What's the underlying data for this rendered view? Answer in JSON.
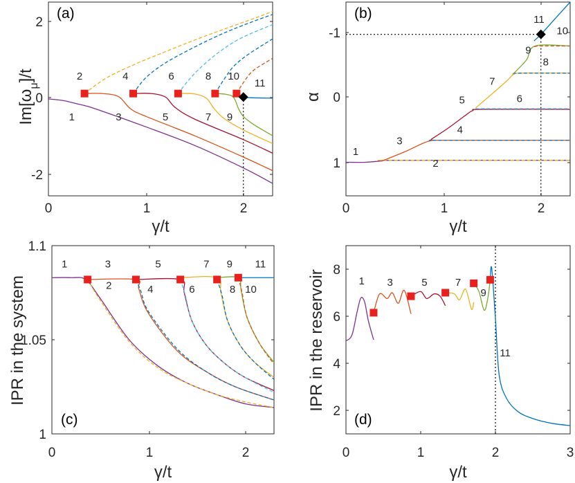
{
  "colors": {
    "c1": "#7E2F8E",
    "c2": "#EDB120",
    "c3": "#D95319",
    "c4": "#0072BD",
    "c5": "#A2142F",
    "c6": "#4DBEEE",
    "c7": "#EDB120",
    "c8": "#0072BD",
    "c9": "#77AC30",
    "c10": "#D95319",
    "c11": "#0072BD",
    "ep_marker": "#E8211F",
    "special_marker": "#000000"
  },
  "chart_data": [
    {
      "panel": "(a)",
      "type": "line",
      "xlabel": "γ/t",
      "ylabel": "Im[ω_μ]/t",
      "xlim": [
        0,
        2.3
      ],
      "ylim": [
        -2.5,
        2.5
      ],
      "xticks": [
        "0",
        "1",
        "2"
      ],
      "yticks": [
        "-2",
        "0",
        "2"
      ],
      "exceptional_points": [
        [
          0.37,
          0.14
        ],
        [
          0.87,
          0.14
        ],
        [
          1.33,
          0.14
        ],
        [
          1.71,
          0.14
        ],
        [
          1.93,
          0.14
        ]
      ],
      "special_point": [
        2.0,
        0.05
      ],
      "vline_x": 2.0,
      "curve_labels": [
        "1",
        "2",
        "3",
        "4",
        "5",
        "6",
        "7",
        "8",
        "9",
        "10",
        "11"
      ],
      "series": [
        {
          "name": "1",
          "style": "solid",
          "x": [
            0,
            0.15,
            0.3,
            0.37,
            0.5,
            1,
            1.5,
            2,
            2.3
          ],
          "y": [
            0,
            -0.04,
            -0.13,
            -0.17,
            -0.27,
            -0.72,
            -1.2,
            -1.78,
            -2.18
          ]
        },
        {
          "name": "2",
          "style": "dashed",
          "x": [
            0.37,
            0.6,
            0.9,
            1.2,
            1.5,
            1.8,
            2.1,
            2.3
          ],
          "y": [
            0.14,
            0.55,
            0.91,
            1.22,
            1.52,
            1.8,
            2.07,
            2.26
          ]
        },
        {
          "name": "3",
          "style": "solid",
          "x": [
            0.37,
            0.55,
            0.72,
            0.84,
            1.0,
            1.5,
            2.0,
            2.3
          ],
          "y": [
            0.14,
            0.14,
            0.06,
            -0.25,
            -0.45,
            -0.95,
            -1.5,
            -1.85
          ]
        },
        {
          "name": "4",
          "style": "dashed",
          "x": [
            0.87,
            1.0,
            1.2,
            1.5,
            1.8,
            2.1,
            2.3
          ],
          "y": [
            0.14,
            0.55,
            0.93,
            1.34,
            1.7,
            2.0,
            2.18
          ]
        },
        {
          "name": "5",
          "style": "solid",
          "x": [
            0.87,
            1.05,
            1.2,
            1.3,
            1.5,
            2.0,
            2.3
          ],
          "y": [
            0.14,
            0.14,
            0.05,
            -0.22,
            -0.52,
            -1.05,
            -1.4
          ]
        },
        {
          "name": "6",
          "style": "dashed",
          "x": [
            1.33,
            1.45,
            1.6,
            1.8,
            2.0,
            2.3
          ],
          "y": [
            0.14,
            0.52,
            0.9,
            1.3,
            1.6,
            1.92
          ]
        },
        {
          "name": "7",
          "style": "solid",
          "x": [
            1.33,
            1.5,
            1.62,
            1.7,
            1.8,
            2.0,
            2.3
          ],
          "y": [
            0.14,
            0.13,
            0.02,
            -0.25,
            -0.5,
            -0.8,
            -1.15
          ]
        },
        {
          "name": "8",
          "style": "dashed",
          "x": [
            1.71,
            1.8,
            1.9,
            2.05,
            2.3
          ],
          "y": [
            0.14,
            0.5,
            0.84,
            1.15,
            1.55
          ]
        },
        {
          "name": "9",
          "style": "solid",
          "x": [
            1.71,
            1.82,
            1.9,
            1.95,
            2.0,
            2.1,
            2.3
          ],
          "y": [
            0.14,
            0.12,
            0.04,
            -0.25,
            -0.45,
            -0.65,
            -0.95
          ]
        },
        {
          "name": "10",
          "style": "dashed",
          "x": [
            1.93,
            2.0,
            2.1,
            2.3
          ],
          "y": [
            0.14,
            0.42,
            0.73,
            1.05
          ]
        },
        {
          "name": "11",
          "style": "solid",
          "x": [
            1.93,
            2.0,
            2.1,
            2.3
          ],
          "y": [
            0.14,
            0.05,
            0.03,
            0.02
          ]
        }
      ]
    },
    {
      "panel": "(b)",
      "type": "line",
      "xlabel": "γ/t",
      "ylabel": "α",
      "xlim": [
        0,
        2.3
      ],
      "ylim": [
        1.5,
        -1.5
      ],
      "y_axis_reversed": true,
      "xticks": [
        "0",
        "1",
        "2"
      ],
      "yticks": [
        "-1",
        "0",
        "1"
      ],
      "hline_y": -1.0,
      "vline_x": 2.0,
      "special_point": [
        2.0,
        -1.0
      ],
      "curve_labels": [
        "1",
        "2",
        "3",
        "4",
        "5",
        "6",
        "7",
        "8",
        "9",
        "10",
        "11"
      ],
      "series": [
        {
          "name": "1",
          "style": "solid",
          "x": [
            0,
            0.2,
            0.37,
            0.5,
            2.3
          ],
          "y": [
            0.98,
            0.98,
            0.96,
            0.95,
            0.95
          ]
        },
        {
          "name": "2",
          "style": "dashed",
          "x": [
            0.37,
            0.5,
            2.3
          ],
          "y": [
            0.95,
            0.95,
            0.95
          ]
        },
        {
          "name": "3",
          "style": "solid",
          "x": [
            0.37,
            0.6,
            0.8,
            0.9,
            1.0,
            2.3
          ],
          "y": [
            0.96,
            0.82,
            0.68,
            0.64,
            0.64,
            0.64
          ]
        },
        {
          "name": "4",
          "style": "dashed",
          "x": [
            0.87,
            1.0,
            2.3
          ],
          "y": [
            0.64,
            0.64,
            0.64
          ]
        },
        {
          "name": "5",
          "style": "solid",
          "x": [
            0.87,
            1.05,
            1.22,
            1.3,
            1.4,
            2.3
          ],
          "y": [
            0.63,
            0.45,
            0.26,
            0.18,
            0.16,
            0.16
          ]
        },
        {
          "name": "6",
          "style": "dashed",
          "x": [
            1.33,
            1.45,
            2.3
          ],
          "y": [
            0.15,
            0.15,
            0.15
          ]
        },
        {
          "name": "7",
          "style": "solid",
          "x": [
            1.33,
            1.5,
            1.65,
            1.72,
            1.8,
            2.3
          ],
          "y": [
            0.14,
            -0.08,
            -0.28,
            -0.38,
            -0.4,
            -0.4
          ]
        },
        {
          "name": "8",
          "style": "dashed",
          "x": [
            1.71,
            1.8,
            2.3
          ],
          "y": [
            -0.39,
            -0.4,
            -0.4
          ]
        },
        {
          "name": "9",
          "style": "solid",
          "x": [
            1.71,
            1.85,
            1.94,
            2.3
          ],
          "y": [
            -0.38,
            -0.6,
            -0.82,
            -0.82
          ]
        },
        {
          "name": "10",
          "style": "dashed",
          "x": [
            1.93,
            2.0,
            2.3
          ],
          "y": [
            -0.81,
            -0.82,
            -0.82
          ]
        },
        {
          "name": "11",
          "style": "solid",
          "x": [
            1.93,
            2.0,
            2.15,
            2.3
          ],
          "y": [
            -0.9,
            -1.0,
            -1.25,
            -1.5
          ]
        }
      ]
    },
    {
      "panel": "(c)",
      "type": "line",
      "xlabel": "γ/t",
      "ylabel": "IPR in the system",
      "xlim": [
        0,
        2.3
      ],
      "ylim": [
        1.0,
        1.1
      ],
      "xticks": [
        "0",
        "1",
        "2"
      ],
      "yticks": [
        "1",
        "1.05",
        "1.1"
      ],
      "exceptional_points": [
        [
          0.37,
          1.082
        ],
        [
          0.87,
          1.082
        ],
        [
          1.33,
          1.082
        ],
        [
          1.71,
          1.082
        ],
        [
          1.93,
          1.083
        ]
      ],
      "curve_labels": [
        "1",
        "2",
        "3",
        "4",
        "5",
        "6",
        "7",
        "8",
        "9",
        "10",
        "11"
      ],
      "series": [
        {
          "name": "1",
          "style": "solid",
          "x": [
            0,
            0.2,
            0.35,
            0.5,
            0.8,
            1.1,
            1.4,
            1.7,
            2.0,
            2.3
          ],
          "y": [
            1.083,
            1.083,
            1.082,
            1.072,
            1.05,
            1.036,
            1.027,
            1.021,
            1.016,
            1.014
          ]
        },
        {
          "name": "2",
          "style": "dashed",
          "x": [
            0.37,
            0.5,
            0.8,
            1.1,
            1.4,
            1.7,
            2.0,
            2.3
          ],
          "y": [
            1.082,
            1.071,
            1.049,
            1.035,
            1.027,
            1.021,
            1.017,
            1.014
          ]
        },
        {
          "name": "3",
          "style": "solid",
          "x": [
            0.37,
            0.87,
            0.9,
            1.0,
            1.3,
            1.6,
            1.9,
            2.3
          ],
          "y": [
            1.082,
            1.082,
            1.077,
            1.064,
            1.044,
            1.033,
            1.025,
            1.018
          ]
        },
        {
          "name": "4",
          "style": "dashed",
          "x": [
            0.87,
            0.92,
            1.0,
            1.3,
            1.6,
            1.9,
            2.3
          ],
          "y": [
            1.082,
            1.076,
            1.065,
            1.045,
            1.033,
            1.025,
            1.018
          ]
        },
        {
          "name": "5",
          "style": "solid",
          "x": [
            0.87,
            1.33,
            1.37,
            1.45,
            1.6,
            1.8,
            2.0,
            2.3
          ],
          "y": [
            1.082,
            1.082,
            1.075,
            1.06,
            1.047,
            1.037,
            1.03,
            1.023
          ]
        },
        {
          "name": "6",
          "style": "dashed",
          "x": [
            1.33,
            1.38,
            1.45,
            1.6,
            1.8,
            2.0,
            2.3
          ],
          "y": [
            1.082,
            1.074,
            1.06,
            1.047,
            1.037,
            1.03,
            1.022
          ]
        },
        {
          "name": "7",
          "style": "solid",
          "x": [
            1.33,
            1.71,
            1.75,
            1.82,
            1.95,
            2.1,
            2.3
          ],
          "y": [
            1.083,
            1.083,
            1.075,
            1.06,
            1.047,
            1.038,
            1.03
          ]
        },
        {
          "name": "8",
          "style": "dashed",
          "x": [
            1.71,
            1.76,
            1.82,
            1.95,
            2.1,
            2.3
          ],
          "y": [
            1.082,
            1.074,
            1.06,
            1.047,
            1.038,
            1.029
          ]
        },
        {
          "name": "9",
          "style": "solid",
          "x": [
            1.71,
            1.93,
            1.96,
            2.02,
            2.15,
            2.3
          ],
          "y": [
            1.083,
            1.083,
            1.076,
            1.062,
            1.048,
            1.038
          ]
        },
        {
          "name": "10",
          "style": "dashed",
          "x": [
            1.93,
            1.97,
            2.02,
            2.15,
            2.3
          ],
          "y": [
            1.083,
            1.075,
            1.062,
            1.048,
            1.037
          ]
        },
        {
          "name": "11",
          "style": "solid",
          "x": [
            1.93,
            2.3
          ],
          "y": [
            1.083,
            1.083
          ]
        }
      ]
    },
    {
      "panel": "(d)",
      "type": "line",
      "xlabel": "γ/t",
      "ylabel": "IPR in the reservoir",
      "xlim": [
        0,
        3
      ],
      "ylim": [
        1,
        9
      ],
      "xticks": [
        "0",
        "1",
        "2",
        "3"
      ],
      "yticks": [
        "2",
        "4",
        "6",
        "8"
      ],
      "exceptional_points": [
        [
          0.37,
          6.15
        ],
        [
          0.87,
          6.85
        ],
        [
          1.33,
          7.0
        ],
        [
          1.71,
          7.4
        ],
        [
          1.93,
          7.55
        ]
      ],
      "vline_x": 2.0,
      "curve_labels": [
        "1",
        "3",
        "5",
        "7",
        "9",
        "11"
      ],
      "series": [
        {
          "name": "1",
          "style": "solid",
          "x": [
            0,
            0.08,
            0.15,
            0.2,
            0.25,
            0.3,
            0.37
          ],
          "y": [
            4.95,
            5.2,
            6.2,
            6.78,
            6.6,
            5.8,
            5.0
          ]
        },
        {
          "name": "3",
          "style": "solid",
          "x": [
            0.37,
            0.45,
            0.55,
            0.62,
            0.7,
            0.78,
            0.87
          ],
          "y": [
            6.15,
            6.95,
            6.75,
            7.0,
            6.55,
            7.1,
            6.1
          ]
        },
        {
          "name": "5",
          "style": "solid",
          "x": [
            0.87,
            1.0,
            1.08,
            1.18,
            1.26,
            1.33
          ],
          "y": [
            6.85,
            7.05,
            6.75,
            6.95,
            6.85,
            6.45
          ]
        },
        {
          "name": "7",
          "style": "solid",
          "x": [
            1.33,
            1.45,
            1.52,
            1.6,
            1.68,
            1.71
          ],
          "y": [
            7.0,
            6.95,
            6.7,
            7.15,
            6.3,
            6.6
          ]
        },
        {
          "name": "9",
          "style": "solid",
          "x": [
            1.71,
            1.78,
            1.85,
            1.9,
            1.93
          ],
          "y": [
            7.4,
            7.05,
            6.25,
            6.8,
            7.55
          ]
        },
        {
          "name": "11",
          "style": "solid",
          "x": [
            1.93,
            1.95,
            2.0,
            2.05,
            2.15,
            2.3,
            2.5,
            2.75,
            3.0
          ],
          "y": [
            7.55,
            8.05,
            5.9,
            3.5,
            2.5,
            1.95,
            1.65,
            1.45,
            1.35
          ]
        }
      ]
    }
  ]
}
